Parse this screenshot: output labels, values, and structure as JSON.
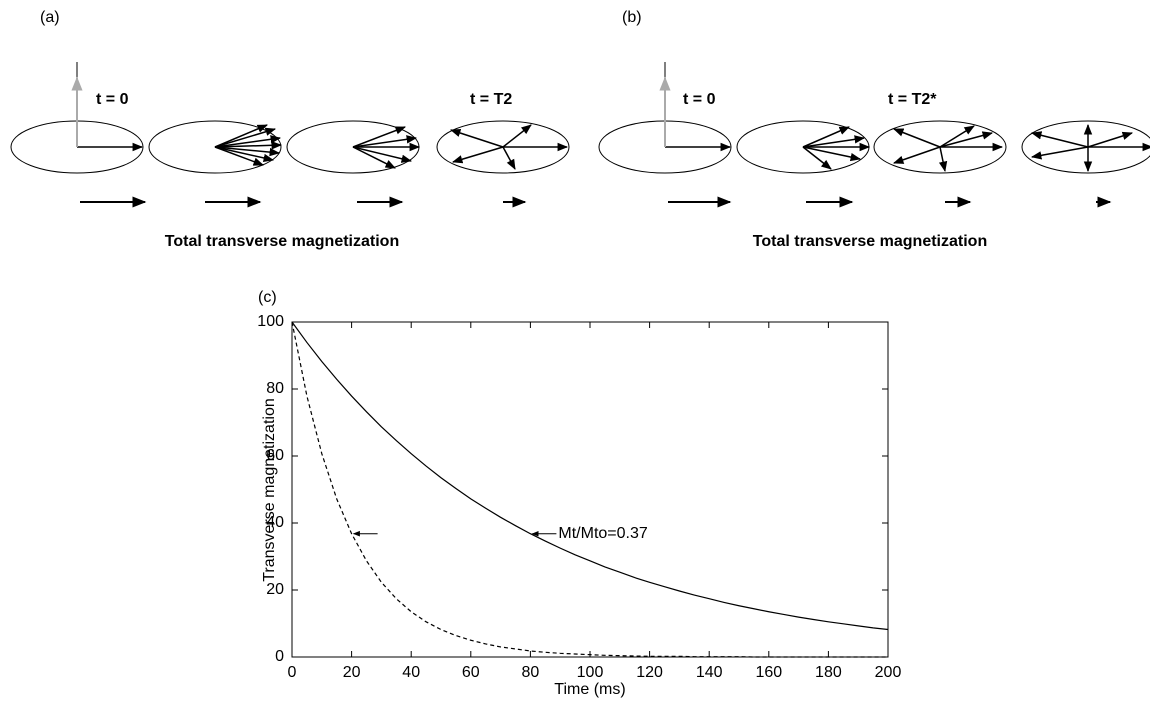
{
  "panels": {
    "a": {
      "label": "(a)",
      "start": "t = 0",
      "end": "t = T2",
      "caption": "Total transverse magnetization"
    },
    "b": {
      "label": "(b)",
      "start": "t = 0",
      "end": "t = T2*",
      "caption": "Total transverse magnetization"
    }
  },
  "chart_data": {
    "type": "line",
    "panel_label": "(c)",
    "xlabel": "Time (ms)",
    "ylabel": "Transverse magnetization",
    "x": [
      0,
      5,
      10,
      15,
      20,
      25,
      30,
      35,
      40,
      45,
      50,
      55,
      60,
      65,
      70,
      75,
      80,
      85,
      90,
      95,
      100,
      105,
      110,
      115,
      120,
      125,
      130,
      135,
      140,
      145,
      150,
      155,
      160,
      165,
      170,
      175,
      180,
      185,
      190,
      195,
      200
    ],
    "series": [
      {
        "color": "#000000",
        "linestyle": "solid",
        "values": [
          100,
          93.9,
          88.2,
          82.9,
          77.9,
          73.2,
          68.7,
          64.6,
          60.7,
          57.0,
          53.5,
          50.3,
          47.2,
          44.4,
          41.7,
          39.2,
          36.8,
          34.6,
          32.5,
          30.5,
          28.7,
          26.9,
          25.3,
          23.7,
          22.3,
          21.0,
          19.7,
          18.5,
          17.4,
          16.3,
          15.3,
          14.4,
          13.5,
          12.7,
          11.9,
          11.2,
          10.5,
          9.9,
          9.3,
          8.7,
          8.2
        ]
      },
      {
        "color": "#000000",
        "linestyle": "dashed",
        "values": [
          100,
          77.9,
          60.7,
          47.2,
          36.8,
          28.7,
          22.3,
          17.4,
          13.5,
          10.5,
          8.2,
          6.4,
          5.0,
          3.9,
          3.0,
          2.4,
          1.8,
          1.4,
          1.1,
          0.9,
          0.7,
          0.5,
          0.4,
          0.3,
          0.2,
          0.2,
          0.2,
          0.1,
          0.1,
          0.1,
          0.1,
          0,
          0,
          0,
          0,
          0,
          0,
          0,
          0,
          0,
          0
        ]
      }
    ],
    "annotation": "Mt/Mto=0.37",
    "xlim": [
      0,
      200
    ],
    "ylim": [
      0,
      100
    ],
    "xticks": [
      0,
      20,
      40,
      60,
      80,
      100,
      120,
      140,
      160,
      180,
      200
    ],
    "yticks": [
      0,
      20,
      40,
      60,
      80,
      100
    ]
  }
}
